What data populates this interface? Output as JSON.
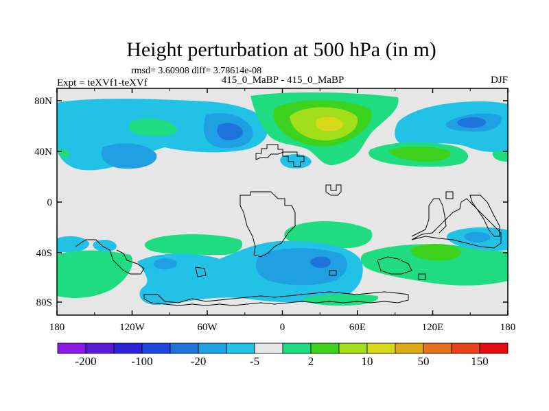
{
  "chart_data": {
    "type": "contour_map",
    "title": "Height perturbation at 500 hPa (in m)",
    "stats_label": "rmsd= 3.60908  diff= 3.78614e-08",
    "left_label": "Expt = teXVf1-teXVf",
    "center_label": "415_0_MaBP - 415_0_MaBP",
    "right_label": "DJF",
    "x_ticks": [
      "180",
      "120W",
      "60W",
      "0",
      "60E",
      "120E",
      "180"
    ],
    "y_ticks": [
      "80N",
      "40N",
      "0",
      "40S",
      "80S"
    ],
    "colorbar": {
      "colors": [
        "#8c1ae6",
        "#5a1ad9",
        "#2e22d9",
        "#1c46e0",
        "#1f74dc",
        "#1fa0e3",
        "#21c2e6",
        "#e6e6e6",
        "#1fdc80",
        "#3cd21e",
        "#a3de1a",
        "#d8d718",
        "#dcaa14",
        "#e6721e",
        "#e8421c",
        "#e40c10"
      ],
      "labels": [
        "-200",
        "-100",
        "-20",
        "-5",
        "2",
        "10",
        "50",
        "150"
      ]
    }
  }
}
